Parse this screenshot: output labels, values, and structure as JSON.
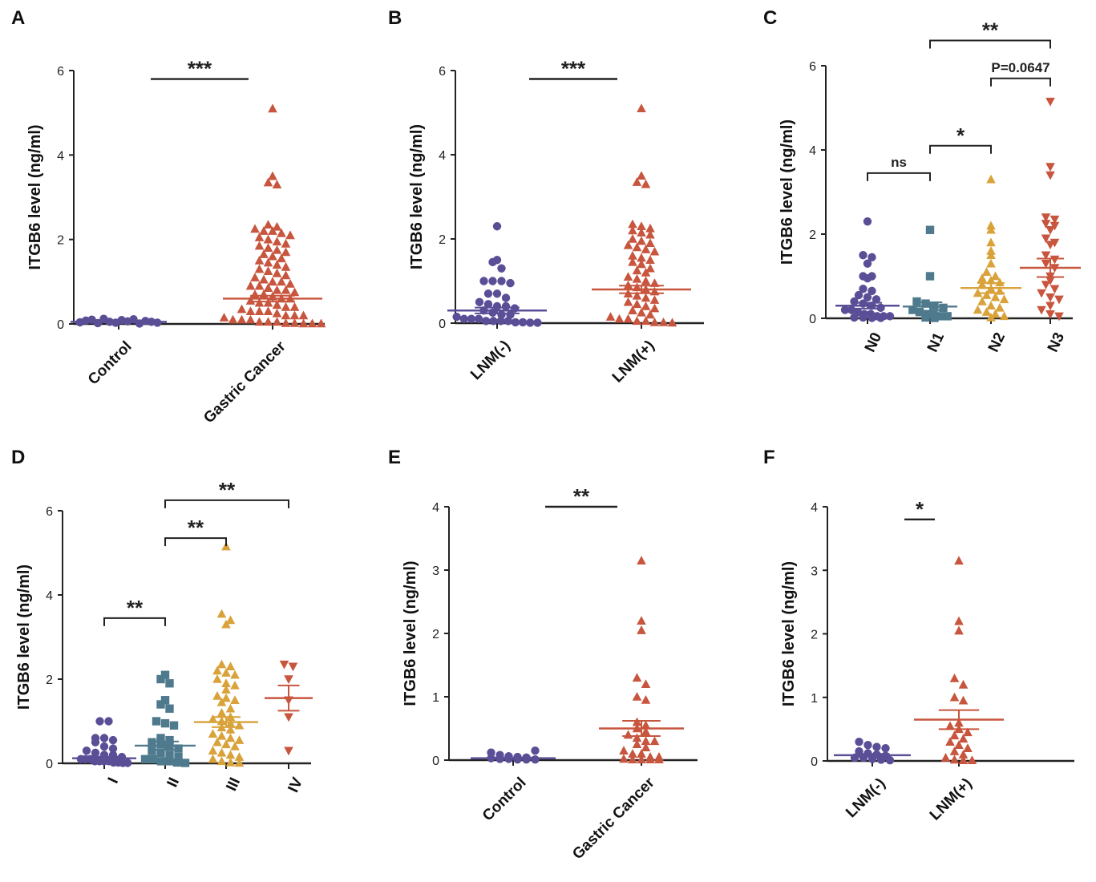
{
  "figure": {
    "colors": {
      "purple": "#5a4f97",
      "red": "#c8553d",
      "teal": "#4f7a8e",
      "gold": "#d9a23a",
      "axis": "#222222"
    }
  },
  "chart_data": [
    {
      "id": "A",
      "letter": "A",
      "type": "scatter",
      "ylabel": "ITGB6 level (ng/ml)",
      "ylim": [
        0,
        6
      ],
      "yticks": [
        0,
        2,
        4,
        6
      ],
      "groups": [
        {
          "label": "Control",
          "color": "purple",
          "marker": "circle",
          "mean": 0.05,
          "sem": 0.01,
          "values": [
            0.04,
            0.08,
            0.1,
            0.02,
            0.12,
            0.05,
            0.03,
            0.09,
            0.06,
            0.11,
            0.01,
            0.07,
            0.05,
            0.03
          ]
        },
        {
          "label": "Gastric Cancer",
          "color": "red",
          "marker": "triangle-up",
          "mean": 0.6,
          "sem": 0.07,
          "values": [
            5.1,
            3.5,
            3.35,
            3.3,
            2.35,
            2.3,
            2.25,
            2.2,
            2.2,
            2.15,
            2.1,
            2.05,
            2.0,
            1.95,
            1.9,
            1.85,
            1.8,
            1.75,
            1.7,
            1.65,
            1.6,
            1.55,
            1.5,
            1.45,
            1.4,
            1.35,
            1.3,
            1.25,
            1.2,
            1.15,
            1.1,
            1.05,
            1.0,
            1.0,
            0.95,
            0.9,
            0.9,
            0.85,
            0.8,
            0.8,
            0.75,
            0.7,
            0.7,
            0.65,
            0.6,
            0.6,
            0.55,
            0.5,
            0.5,
            0.45,
            0.4,
            0.4,
            0.35,
            0.3,
            0.3,
            0.3,
            0.25,
            0.2,
            0.2,
            0.2,
            0.15,
            0.1,
            0.1,
            0.1,
            0.05,
            0.05,
            0.05,
            0.02,
            0.02,
            0.01,
            0.01,
            0.01
          ]
        }
      ],
      "comparisons": [
        {
          "from": 0,
          "to": 1,
          "y": 5.8,
          "label": "***"
        }
      ]
    },
    {
      "id": "B",
      "letter": "B",
      "type": "scatter",
      "ylabel": "ITGB6 level (ng/ml)",
      "ylim": [
        0,
        6
      ],
      "yticks": [
        0,
        2,
        4,
        6
      ],
      "groups": [
        {
          "label": "LNM(-)",
          "color": "purple",
          "marker": "circle",
          "mean": 0.3,
          "sem": 0.07,
          "values": [
            2.3,
            1.5,
            1.45,
            1.3,
            1.0,
            1.0,
            1.0,
            0.95,
            0.7,
            0.7,
            0.6,
            0.5,
            0.45,
            0.4,
            0.4,
            0.35,
            0.3,
            0.25,
            0.2,
            0.2,
            0.15,
            0.1,
            0.1,
            0.1,
            0.05,
            0.05,
            0.05,
            0.05,
            0.02,
            0.02,
            0.01,
            0.01
          ]
        },
        {
          "label": "LNM(+)",
          "color": "red",
          "marker": "triangle-up",
          "mean": 0.8,
          "sem": 0.09,
          "values": [
            5.1,
            3.5,
            3.35,
            3.3,
            2.35,
            2.3,
            2.25,
            2.2,
            2.15,
            2.1,
            2.0,
            1.95,
            1.9,
            1.85,
            1.8,
            1.75,
            1.7,
            1.6,
            1.55,
            1.5,
            1.45,
            1.4,
            1.3,
            1.25,
            1.2,
            1.1,
            1.05,
            1.0,
            0.95,
            0.9,
            0.85,
            0.8,
            0.75,
            0.7,
            0.65,
            0.6,
            0.55,
            0.5,
            0.45,
            0.4,
            0.35,
            0.3,
            0.25,
            0.2,
            0.15,
            0.1,
            0.1,
            0.05,
            0.05,
            0.02,
            0.02,
            0.01
          ]
        }
      ],
      "comparisons": [
        {
          "from": 0,
          "to": 1,
          "y": 5.8,
          "label": "***"
        }
      ]
    },
    {
      "id": "C",
      "letter": "C",
      "type": "scatter",
      "ylabel": "ITGB6 level (ng/ml)",
      "ylim": [
        0,
        6
      ],
      "yticks": [
        0,
        2,
        4,
        6
      ],
      "rotated_labels": true,
      "groups": [
        {
          "label": "N0",
          "color": "purple",
          "marker": "circle",
          "mean": 0.3,
          "sem": 0.07,
          "values": [
            2.3,
            1.5,
            1.45,
            1.3,
            1.0,
            1.0,
            0.95,
            0.7,
            0.65,
            0.55,
            0.5,
            0.45,
            0.4,
            0.35,
            0.3,
            0.25,
            0.2,
            0.2,
            0.15,
            0.1,
            0.1,
            0.05,
            0.05,
            0.05,
            0.02,
            0.02,
            0.01,
            0.01
          ]
        },
        {
          "label": "N1",
          "color": "teal",
          "marker": "square",
          "mean": 0.28,
          "sem": 0.1,
          "values": [
            2.1,
            1.0,
            0.4,
            0.35,
            0.3,
            0.25,
            0.2,
            0.15,
            0.1,
            0.1,
            0.05,
            0.05,
            0.02,
            0.01
          ]
        },
        {
          "label": "N2",
          "color": "gold",
          "marker": "triangle-up",
          "mean": 0.72,
          "sem": 0.12,
          "values": [
            3.3,
            2.2,
            2.1,
            1.8,
            1.6,
            1.5,
            1.3,
            1.1,
            1.0,
            0.95,
            0.9,
            0.85,
            0.8,
            0.7,
            0.65,
            0.6,
            0.55,
            0.5,
            0.45,
            0.4,
            0.3,
            0.25,
            0.2,
            0.15,
            0.1,
            0.05,
            0.02
          ]
        },
        {
          "label": "N3",
          "color": "red",
          "marker": "triangle-down",
          "mean": 1.2,
          "sem": 0.22,
          "values": [
            5.15,
            3.6,
            3.4,
            2.4,
            2.35,
            2.25,
            2.2,
            2.1,
            1.9,
            1.8,
            1.75,
            1.5,
            1.4,
            1.3,
            1.2,
            1.0,
            0.9,
            0.8,
            0.7,
            0.6,
            0.5,
            0.45,
            0.3,
            0.2,
            0.1,
            0.05
          ]
        }
      ],
      "comparisons": [
        {
          "from": 1,
          "to": 3,
          "y": 6.6,
          "label": "**"
        },
        {
          "from": 2,
          "to": 3,
          "y": 5.7,
          "label": "P=0.0647"
        },
        {
          "from": 1,
          "to": 2,
          "y": 4.1,
          "label": "*"
        },
        {
          "from": 0,
          "to": 1,
          "y": 3.45,
          "label": "ns"
        }
      ]
    },
    {
      "id": "D",
      "letter": "D",
      "type": "scatter",
      "ylabel": "ITGB6 level (ng/ml)",
      "ylim": [
        0,
        6
      ],
      "yticks": [
        0,
        2,
        4,
        6
      ],
      "rotated_labels": true,
      "groups": [
        {
          "label": "I",
          "color": "purple",
          "marker": "circle",
          "mean": 0.12,
          "sem": 0.04,
          "values": [
            1.0,
            1.0,
            0.6,
            0.6,
            0.55,
            0.5,
            0.4,
            0.35,
            0.3,
            0.25,
            0.2,
            0.2,
            0.15,
            0.1,
            0.1,
            0.1,
            0.05,
            0.05,
            0.05,
            0.05,
            0.02,
            0.02,
            0.01,
            0.01
          ]
        },
        {
          "label": "II",
          "color": "teal",
          "marker": "square",
          "mean": 0.42,
          "sem": 0.1,
          "values": [
            2.1,
            2.0,
            1.9,
            1.5,
            1.4,
            1.3,
            1.0,
            0.95,
            0.9,
            0.6,
            0.55,
            0.5,
            0.45,
            0.4,
            0.35,
            0.3,
            0.25,
            0.2,
            0.15,
            0.1,
            0.1,
            0.05,
            0.05,
            0.02,
            0.01
          ]
        },
        {
          "label": "III",
          "color": "gold",
          "marker": "triangle-up",
          "mean": 0.98,
          "sem": 0.12,
          "values": [
            5.15,
            3.55,
            3.4,
            3.3,
            2.35,
            2.3,
            2.2,
            2.15,
            2.1,
            2.0,
            1.9,
            1.85,
            1.75,
            1.6,
            1.55,
            1.5,
            1.45,
            1.3,
            1.2,
            1.1,
            1.05,
            1.0,
            0.95,
            0.9,
            0.85,
            0.8,
            0.7,
            0.65,
            0.6,
            0.55,
            0.5,
            0.45,
            0.4,
            0.3,
            0.25,
            0.2,
            0.15,
            0.1,
            0.05,
            0.02,
            0.01
          ]
        },
        {
          "label": "IV",
          "color": "red",
          "marker": "triangle-down",
          "mean": 1.55,
          "sem": 0.3,
          "values": [
            2.35,
            2.3,
            2.0,
            1.5,
            1.1,
            0.3
          ]
        }
      ],
      "comparisons": [
        {
          "from": 1,
          "to": 3,
          "y": 6.25,
          "label": "**"
        },
        {
          "from": 1,
          "to": 2,
          "y": 5.35,
          "label": "**"
        },
        {
          "from": 0,
          "to": 1,
          "y": 3.45,
          "label": "**"
        }
      ]
    },
    {
      "id": "E",
      "letter": "E",
      "type": "scatter",
      "ylabel": "ITGB6 level (ng/ml)",
      "ylim": [
        0,
        4
      ],
      "yticks": [
        0,
        1,
        2,
        3,
        4
      ],
      "groups": [
        {
          "label": "Control",
          "color": "purple",
          "marker": "circle",
          "mean": 0.03,
          "sem": 0.01,
          "values": [
            0.12,
            0.08,
            0.06,
            0.05,
            0.04,
            0.03,
            0.02,
            0.02,
            0.01,
            0.01,
            0.01,
            0.15
          ]
        },
        {
          "label": "Gastric Cancer",
          "color": "red",
          "marker": "triangle-up",
          "mean": 0.5,
          "sem": 0.12,
          "values": [
            3.15,
            2.2,
            2.05,
            1.3,
            1.2,
            1.0,
            0.95,
            0.6,
            0.55,
            0.5,
            0.45,
            0.4,
            0.35,
            0.3,
            0.3,
            0.25,
            0.2,
            0.15,
            0.1,
            0.1,
            0.05,
            0.05,
            0.02,
            0.01,
            0.01,
            0.01,
            0.01
          ]
        }
      ],
      "comparisons": [
        {
          "from": 0,
          "to": 1,
          "y": 4.0,
          "label": "**"
        }
      ]
    },
    {
      "id": "F",
      "letter": "F",
      "type": "scatter",
      "ylabel": "ITGB6 level (ng/ml)",
      "ylim": [
        0,
        4
      ],
      "yticks": [
        0,
        1,
        2,
        3,
        4
      ],
      "groups": [
        {
          "label": "LNM(-)",
          "color": "purple",
          "marker": "circle",
          "mean": 0.09,
          "sem": 0.02,
          "values": [
            0.3,
            0.25,
            0.22,
            0.2,
            0.15,
            0.12,
            0.1,
            0.08,
            0.05,
            0.05,
            0.03,
            0.02,
            0.01
          ]
        },
        {
          "label": "LNM(+)",
          "color": "red",
          "marker": "triangle-up",
          "mean": 0.65,
          "sem": 0.15,
          "values": [
            3.15,
            2.2,
            2.05,
            1.3,
            1.2,
            1.0,
            0.95,
            0.6,
            0.55,
            0.5,
            0.45,
            0.4,
            0.35,
            0.3,
            0.25,
            0.2,
            0.15,
            0.1,
            0.05,
            0.02,
            0.01,
            0.01
          ]
        }
      ],
      "comparisons": [
        {
          "from": 0,
          "to": 1,
          "y": 3.8,
          "label": "*"
        }
      ]
    }
  ]
}
